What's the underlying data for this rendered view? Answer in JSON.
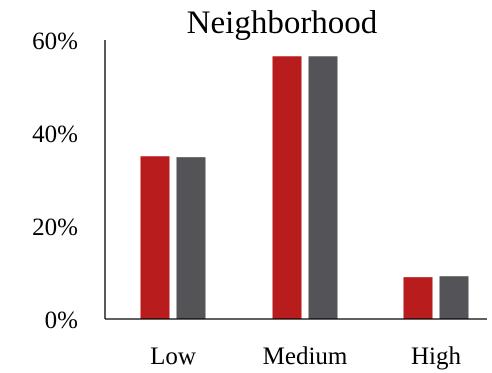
{
  "chart_data": {
    "type": "bar",
    "title": "Neighborhood",
    "xlabel": "",
    "ylabel": "",
    "categories": [
      "Low",
      "Medium",
      "High"
    ],
    "series": [
      {
        "values": [
          35,
          56.5,
          9
        ],
        "color": "#b81c1c"
      },
      {
        "values": [
          34.8,
          56.5,
          9.2
        ],
        "color": "#545458"
      }
    ],
    "ylim": [
      0,
      60
    ],
    "yticks": [
      0,
      20,
      40,
      60
    ],
    "ytick_labels": [
      "0%",
      "20%",
      "40%",
      "60%"
    ],
    "grid": false,
    "legend": "none"
  }
}
